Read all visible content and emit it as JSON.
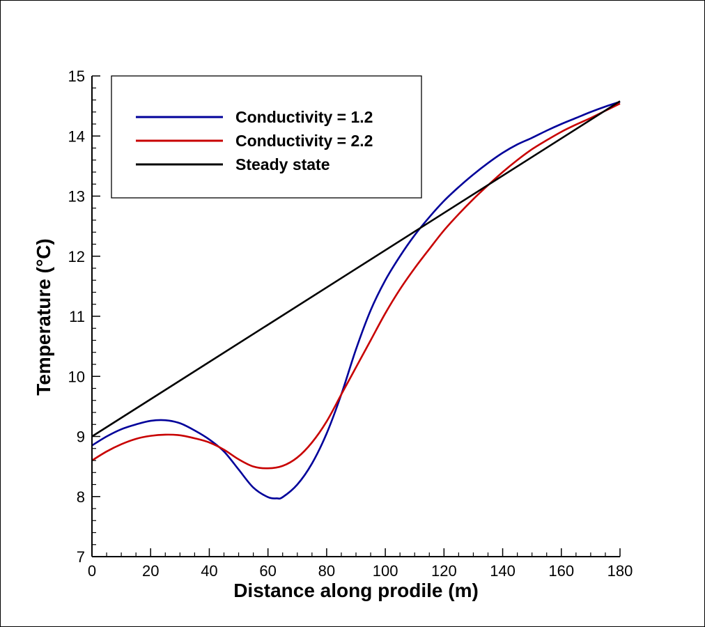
{
  "chart_data": {
    "type": "line",
    "title": "",
    "xlabel": "Distance along prodile (m)",
    "ylabel": "Temperature (°C)",
    "xlim": [
      0,
      180
    ],
    "ylim": [
      7,
      15
    ],
    "xticks": [
      0,
      20,
      40,
      60,
      80,
      100,
      120,
      140,
      160,
      180
    ],
    "yticks": [
      7,
      8,
      9,
      10,
      11,
      12,
      13,
      14,
      15
    ],
    "grid": false,
    "legend_position": "top-left",
    "series": [
      {
        "name": "Conductivity = 1.2",
        "color": "#00009a",
        "x": [
          0,
          5,
          10,
          15,
          20,
          25,
          30,
          35,
          40,
          45,
          50,
          55,
          60,
          63,
          65,
          70,
          75,
          80,
          85,
          90,
          95,
          100,
          105,
          110,
          115,
          120,
          125,
          130,
          135,
          140,
          145,
          150,
          155,
          160,
          165,
          170,
          175,
          180
        ],
        "y": [
          8.85,
          9.0,
          9.12,
          9.2,
          9.26,
          9.27,
          9.22,
          9.1,
          8.95,
          8.75,
          8.45,
          8.15,
          7.99,
          7.97,
          7.99,
          8.2,
          8.55,
          9.05,
          9.7,
          10.45,
          11.1,
          11.6,
          12.0,
          12.35,
          12.65,
          12.92,
          13.15,
          13.36,
          13.55,
          13.72,
          13.86,
          13.97,
          14.09,
          14.2,
          14.3,
          14.4,
          14.49,
          14.57
        ]
      },
      {
        "name": "Conductivity = 2.2",
        "color": "#c80000",
        "x": [
          0,
          5,
          10,
          15,
          20,
          25,
          30,
          35,
          40,
          45,
          50,
          55,
          60,
          65,
          70,
          75,
          80,
          85,
          90,
          95,
          100,
          105,
          110,
          115,
          120,
          125,
          130,
          135,
          140,
          145,
          150,
          155,
          160,
          165,
          170,
          175,
          180
        ],
        "y": [
          8.6,
          8.75,
          8.87,
          8.96,
          9.01,
          9.03,
          9.02,
          8.97,
          8.9,
          8.78,
          8.62,
          8.5,
          8.47,
          8.51,
          8.65,
          8.9,
          9.25,
          9.7,
          10.15,
          10.6,
          11.05,
          11.45,
          11.8,
          12.12,
          12.43,
          12.7,
          12.95,
          13.18,
          13.4,
          13.6,
          13.78,
          13.93,
          14.07,
          14.19,
          14.3,
          14.42,
          14.54
        ]
      },
      {
        "name": "Steady state",
        "color": "#000000",
        "x": [
          0,
          180
        ],
        "y": [
          9.0,
          14.58
        ]
      }
    ]
  }
}
